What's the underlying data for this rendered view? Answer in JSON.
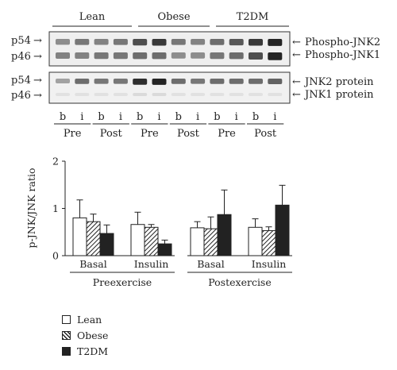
{
  "blot": {
    "groups": [
      "Lean",
      "Obese",
      "T2DM"
    ],
    "lane_labels": [
      "b",
      "i",
      "b",
      "i",
      "b",
      "i",
      "b",
      "i",
      "b",
      "i",
      "b",
      "i"
    ],
    "phase_labels": [
      "Pre",
      "Post",
      "Pre",
      "Post",
      "Pre",
      "Post"
    ],
    "top_panel": {
      "left_labels": [
        "p54",
        "p46"
      ],
      "right_labels": [
        "Phospho-JNK2",
        "Phospho-JNK1"
      ],
      "band_intensity_upper": [
        0.45,
        0.55,
        0.5,
        0.55,
        0.75,
        0.85,
        0.55,
        0.5,
        0.6,
        0.7,
        0.85,
        0.95
      ],
      "band_intensity_lower": [
        0.5,
        0.5,
        0.55,
        0.55,
        0.6,
        0.6,
        0.45,
        0.45,
        0.55,
        0.6,
        0.75,
        0.95
      ]
    },
    "bottom_panel": {
      "left_labels": [
        "p54",
        "p46"
      ],
      "right_labels": [
        "JNK2 protein",
        "JNK1 protein"
      ],
      "band_intensity_upper": [
        0.35,
        0.6,
        0.55,
        0.55,
        0.9,
        0.95,
        0.6,
        0.55,
        0.6,
        0.6,
        0.6,
        0.65
      ],
      "band_intensity_lower": [
        0.05,
        0.05,
        0.05,
        0.05,
        0.08,
        0.08,
        0.05,
        0.05,
        0.05,
        0.05,
        0.05,
        0.05
      ]
    },
    "arrow_glyph": "→",
    "left_arrow_glyph": "←"
  },
  "chart_data": {
    "type": "bar",
    "ylabel": "p-JNK/JNK ratio",
    "ylim": [
      0,
      2
    ],
    "yticks": [
      "0",
      "1",
      "2"
    ],
    "categories": [
      "Basal",
      "Insulin",
      "Basal",
      "Insulin"
    ],
    "category_groups": [
      {
        "label": "Preexercise",
        "categories": [
          "Basal",
          "Insulin"
        ]
      },
      {
        "label": "Postexercise",
        "categories": [
          "Basal",
          "Insulin"
        ]
      }
    ],
    "series": [
      {
        "name": "Lean",
        "fill": "white",
        "values": [
          0.8,
          0.66,
          0.59,
          0.6
        ],
        "errors": [
          0.38,
          0.26,
          0.13,
          0.18
        ]
      },
      {
        "name": "Obese",
        "fill": "hatch",
        "values": [
          0.72,
          0.6,
          0.57,
          0.53
        ],
        "errors": [
          0.16,
          0.06,
          0.25,
          0.08
        ]
      },
      {
        "name": "T2DM",
        "fill": "black",
        "values": [
          0.47,
          0.25,
          0.87,
          1.07
        ],
        "errors": [
          0.18,
          0.08,
          0.52,
          0.42
        ]
      }
    ],
    "legend_position": "bottom-left",
    "colors": {
      "ink": "#222222",
      "paper": "#ffffff"
    }
  }
}
